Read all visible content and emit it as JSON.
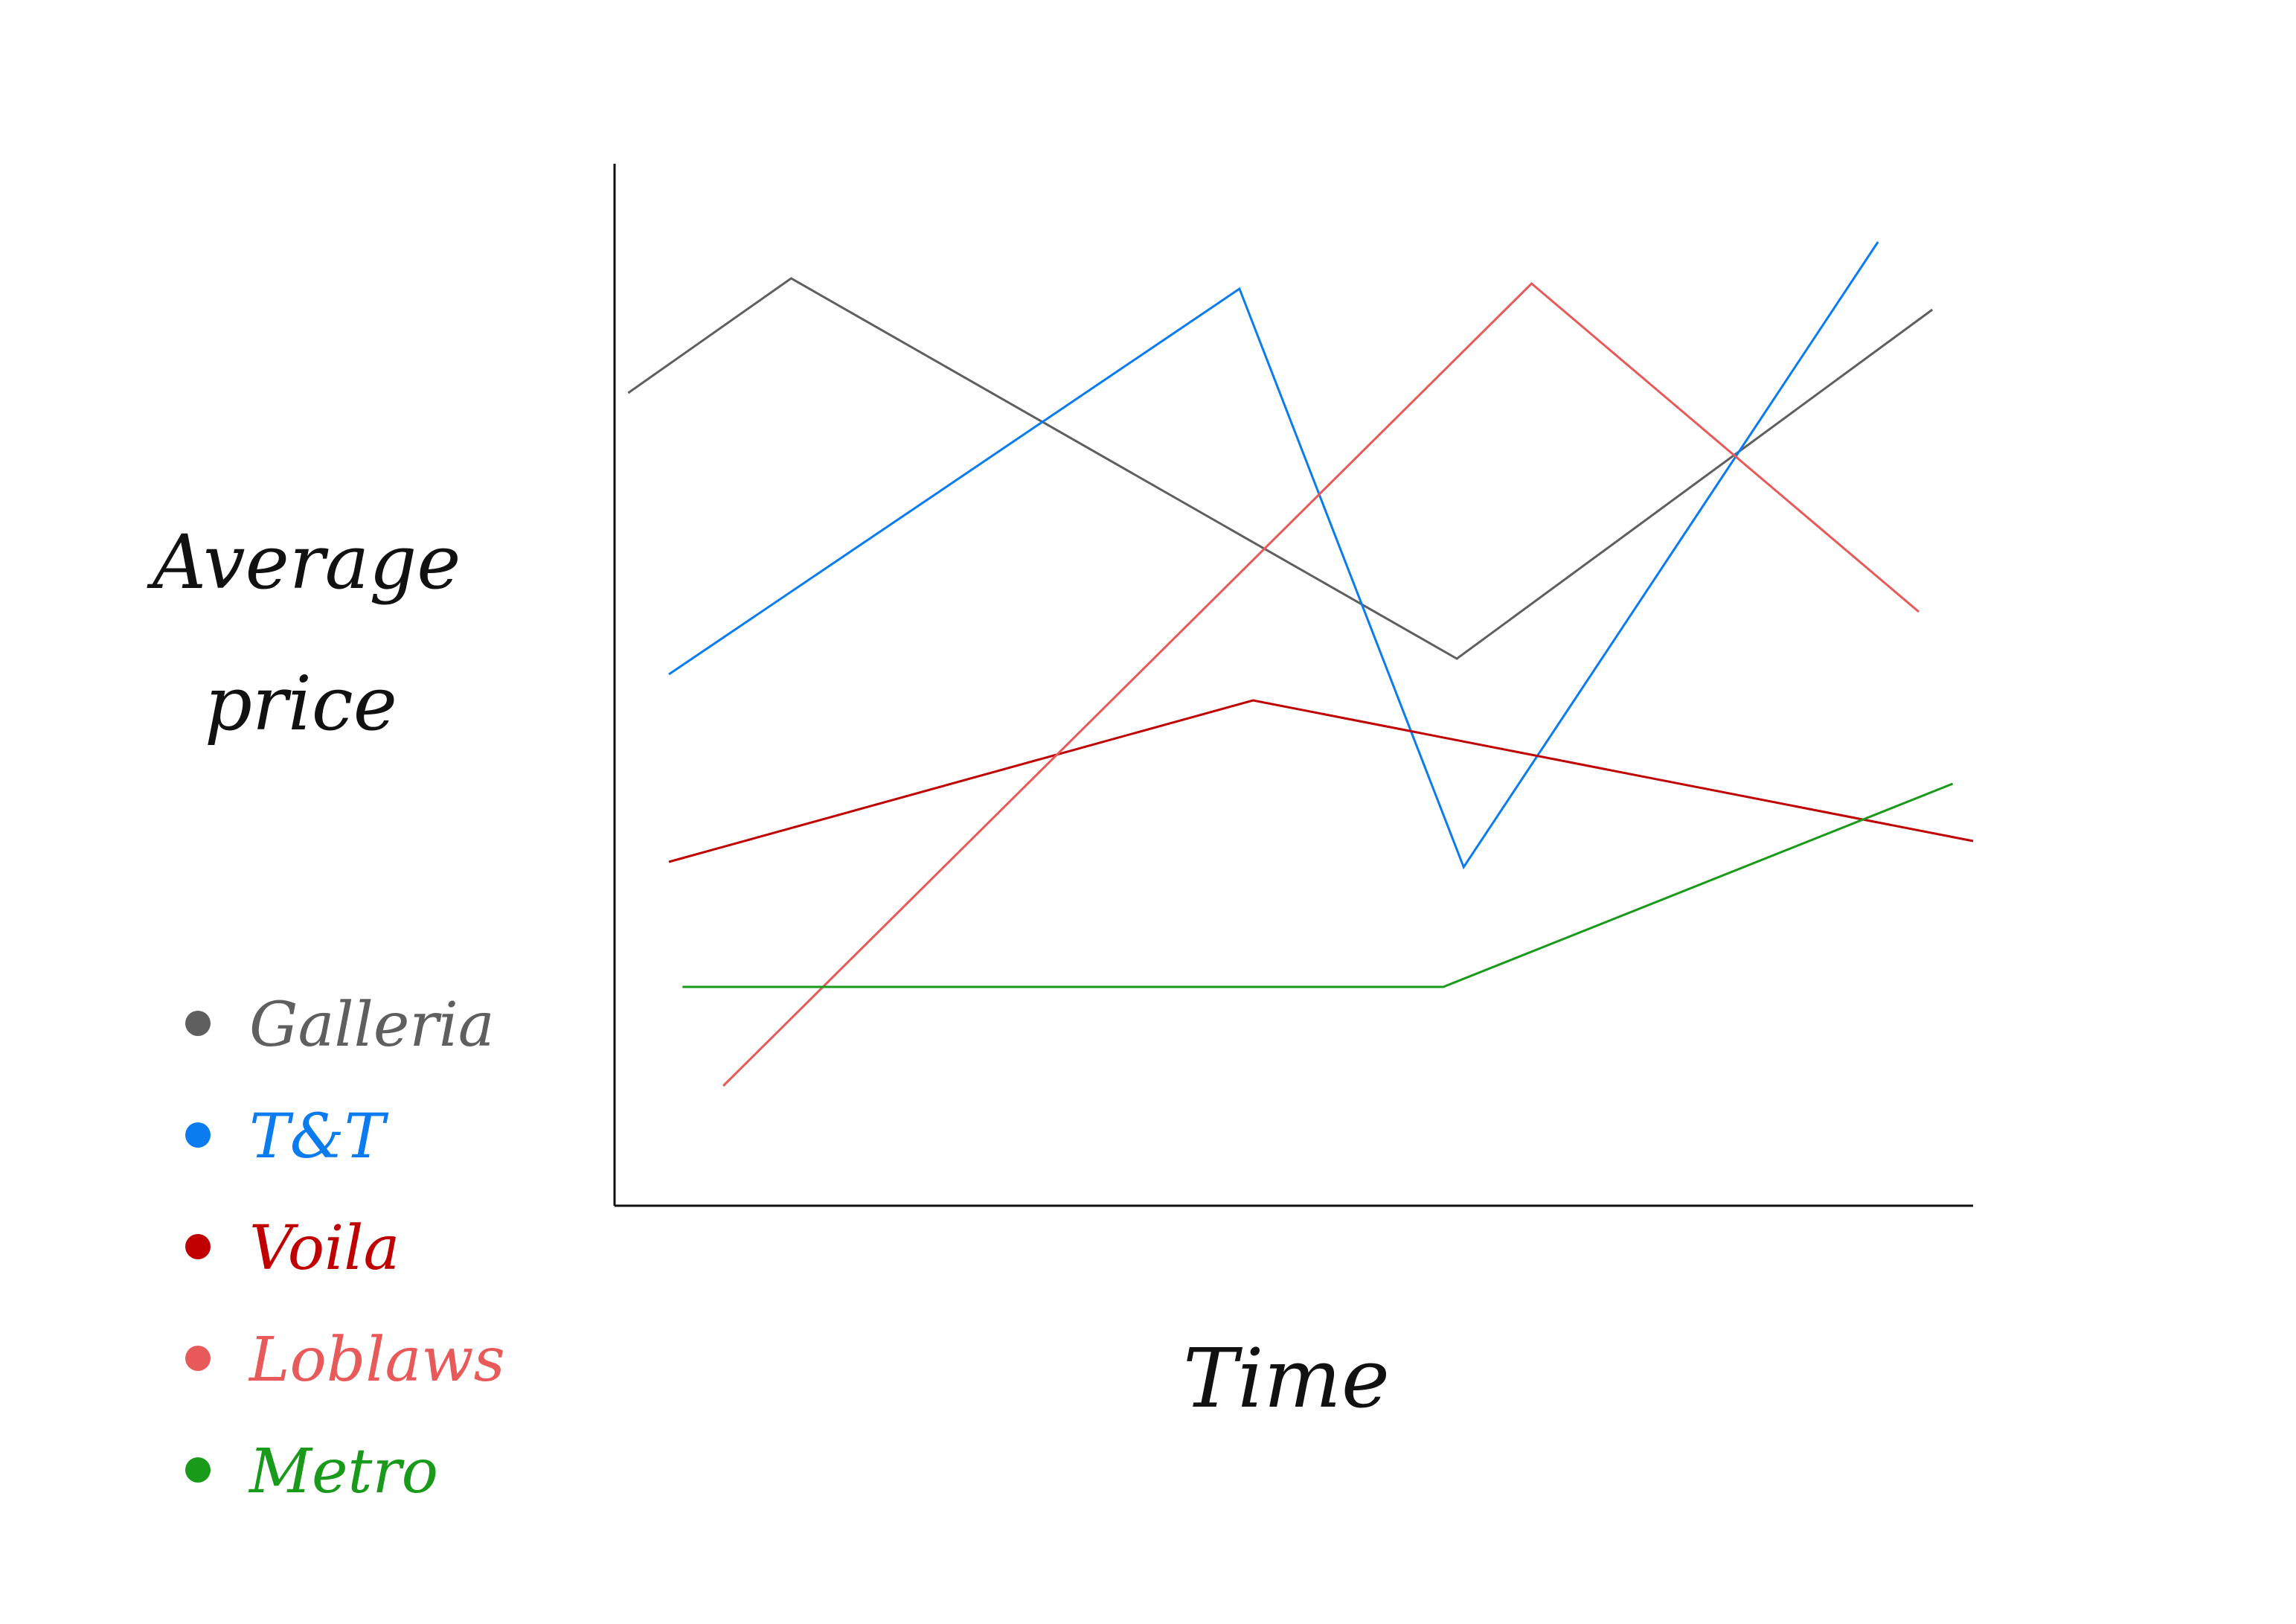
{
  "chart_data": {
    "type": "line",
    "title": "",
    "xlabel": "Time",
    "ylabel": "Average price",
    "xlim": [
      0,
      100
    ],
    "ylim": [
      0,
      100
    ],
    "grid": false,
    "legend_position": "left",
    "series": [
      {
        "name": "Galleria",
        "color": "#5f5f5f",
        "points": [
          [
            1,
            78
          ],
          [
            13,
            89
          ],
          [
            62,
            52.5
          ],
          [
            97,
            86
          ]
        ]
      },
      {
        "name": "T&T",
        "color": "#0a7cf0",
        "points": [
          [
            4,
            51
          ],
          [
            46,
            88
          ],
          [
            62.5,
            32.5
          ],
          [
            93,
            92.5
          ]
        ]
      },
      {
        "name": "Voila",
        "color": "#c00000",
        "points": [
          [
            4,
            33
          ],
          [
            47,
            48.5
          ],
          [
            100,
            35
          ]
        ]
      },
      {
        "name": "Loblaws",
        "color": "#e85a5a",
        "points": [
          [
            8,
            11.5
          ],
          [
            67.5,
            88.5
          ],
          [
            96,
            57
          ]
        ]
      },
      {
        "name": "Metro",
        "color": "#1a9a1a",
        "points": [
          [
            5,
            21
          ],
          [
            61,
            21
          ],
          [
            98.5,
            40.5
          ]
        ]
      }
    ]
  }
}
